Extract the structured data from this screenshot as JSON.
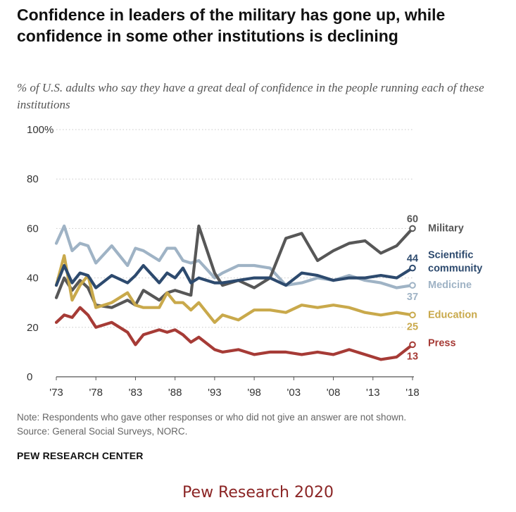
{
  "title": "Confidence in leaders of the military has gone up, while confidence in some other institutions is declining",
  "subtitle": "% of U.S. adults who say they have a great deal of confidence in the people running each of these institutions",
  "note": "Note: Respondents who gave other responses or who did not give an answer are not shown.",
  "source": "Source: General Social Surveys, NORC.",
  "brand": "PEW RESEARCH CENTER",
  "credit": "Pew Research 2020",
  "chart_data": {
    "type": "line",
    "title": "Confidence in leaders of the military has gone up, while confidence in some other institutions is declining",
    "xlabel": "",
    "ylabel": "% of U.S. adults",
    "xlim": [
      1973,
      2018
    ],
    "ylim": [
      0,
      100
    ],
    "yticks": [
      0,
      20,
      40,
      60,
      80,
      100
    ],
    "ytick_labels": [
      "0",
      "20",
      "40",
      "60",
      "80",
      "100%"
    ],
    "xticks": [
      1973,
      1978,
      1983,
      1988,
      1993,
      1998,
      2003,
      2008,
      2013,
      2018
    ],
    "xtick_labels": [
      "'73",
      "'78",
      "'83",
      "'88",
      "'93",
      "'98",
      "'03",
      "'08",
      "'13",
      "'18"
    ],
    "gridlines": true,
    "series": [
      {
        "name": "Medicine",
        "label_lines": [
          "Medicine"
        ],
        "color": "#9fb3c5",
        "end_value": "37",
        "x": [
          1973,
          1974,
          1975,
          1976,
          1977,
          1978,
          1980,
          1982,
          1983,
          1984,
          1986,
          1987,
          1988,
          1989,
          1990,
          1991,
          1993,
          1994,
          1996,
          1998,
          2000,
          2002,
          2004,
          2006,
          2008,
          2010,
          2012,
          2014,
          2016,
          2018
        ],
        "values": [
          54,
          61,
          51,
          54,
          53,
          46,
          53,
          45,
          52,
          51,
          47,
          52,
          52,
          47,
          46,
          47,
          40,
          42,
          45,
          45,
          44,
          37,
          38,
          40,
          39,
          41,
          39,
          38,
          36,
          37
        ]
      },
      {
        "name": "Military",
        "label_lines": [
          "Military"
        ],
        "color": "#575757",
        "end_value": "60",
        "x": [
          1973,
          1974,
          1975,
          1976,
          1977,
          1978,
          1980,
          1982,
          1983,
          1984,
          1986,
          1987,
          1988,
          1989,
          1990,
          1991,
          1993,
          1994,
          1996,
          1998,
          2000,
          2002,
          2004,
          2006,
          2008,
          2010,
          2012,
          2014,
          2016,
          2018
        ],
        "values": [
          32,
          40,
          35,
          39,
          36,
          29,
          28,
          31,
          29,
          35,
          31,
          34,
          35,
          34,
          33,
          61,
          42,
          37,
          39,
          36,
          40,
          56,
          58,
          47,
          51,
          54,
          55,
          50,
          53,
          60
        ]
      },
      {
        "name": "Education",
        "label_lines": [
          "Education"
        ],
        "color": "#c9a94b",
        "end_value": "25",
        "x": [
          1973,
          1974,
          1975,
          1976,
          1977,
          1978,
          1980,
          1982,
          1983,
          1984,
          1986,
          1987,
          1988,
          1989,
          1990,
          1991,
          1993,
          1994,
          1996,
          1998,
          2000,
          2002,
          2004,
          2006,
          2008,
          2010,
          2012,
          2014,
          2016,
          2018
        ],
        "values": [
          37,
          49,
          31,
          37,
          41,
          28,
          30,
          34,
          29,
          28,
          28,
          34,
          30,
          30,
          27,
          30,
          22,
          25,
          23,
          27,
          27,
          26,
          29,
          28,
          29,
          28,
          26,
          25,
          26,
          25
        ]
      },
      {
        "name": "Scientific community",
        "label_lines": [
          "Scientific",
          "community"
        ],
        "color": "#2d4a6e",
        "end_value": "44",
        "x": [
          1973,
          1974,
          1975,
          1976,
          1977,
          1978,
          1980,
          1982,
          1983,
          1984,
          1986,
          1987,
          1988,
          1989,
          1990,
          1991,
          1993,
          1994,
          1996,
          1998,
          2000,
          2002,
          2004,
          2006,
          2008,
          2010,
          2012,
          2014,
          2016,
          2018
        ],
        "values": [
          37,
          45,
          38,
          42,
          41,
          36,
          41,
          38,
          41,
          45,
          38,
          42,
          40,
          44,
          38,
          40,
          38,
          38,
          39,
          40,
          40,
          37,
          42,
          41,
          39,
          40,
          40,
          41,
          40,
          44
        ]
      },
      {
        "name": "Press",
        "label_lines": [
          "Press"
        ],
        "color": "#a63b36",
        "end_value": "13",
        "x": [
          1973,
          1974,
          1975,
          1976,
          1977,
          1978,
          1980,
          1982,
          1983,
          1984,
          1986,
          1987,
          1988,
          1989,
          1990,
          1991,
          1993,
          1994,
          1996,
          1998,
          2000,
          2002,
          2004,
          2006,
          2008,
          2010,
          2012,
          2014,
          2016,
          2018
        ],
        "values": [
          22,
          25,
          24,
          28,
          25,
          20,
          22,
          18,
          13,
          17,
          19,
          18,
          19,
          17,
          14,
          16,
          11,
          10,
          11,
          9,
          10,
          10,
          9,
          10,
          9,
          11,
          9,
          7,
          8,
          13
        ]
      }
    ]
  }
}
